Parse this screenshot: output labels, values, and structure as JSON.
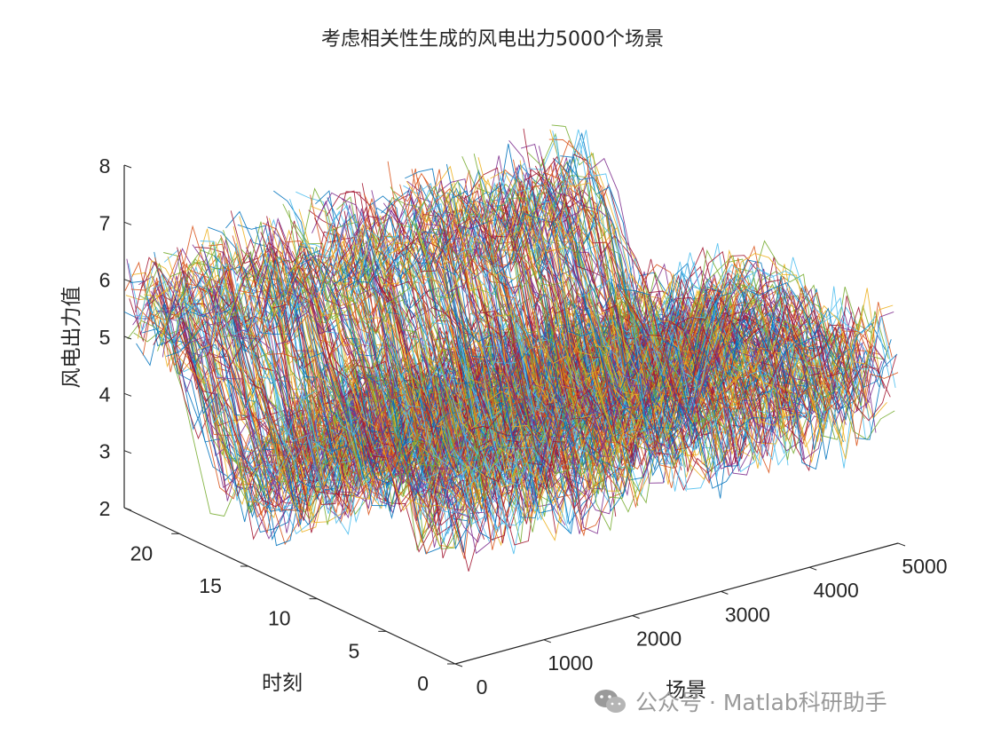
{
  "chart_data": {
    "type": "line",
    "title": "考虑相关性生成的风电出力5000个场景",
    "xlabel": "场景",
    "ylabel": "时刻",
    "zlabel": "风电出力值",
    "x_ticks": [
      0,
      1000,
      2000,
      3000,
      4000,
      5000
    ],
    "y_ticks": [
      0,
      5,
      10,
      15,
      20
    ],
    "z_ticks": [
      2,
      3,
      4,
      5,
      6,
      7,
      8
    ],
    "xlim": [
      0,
      5000
    ],
    "ylim": [
      0,
      24
    ],
    "zlim": [
      2,
      8
    ],
    "grid": false,
    "scenario_count": 5000,
    "time_steps": 24,
    "series_colors": [
      "#0072BD",
      "#D95319",
      "#EDB120",
      "#7E2F8E",
      "#77AC30",
      "#4DBEEE",
      "#A2142F"
    ]
  },
  "watermark": {
    "text": "公众号 · Matlab科研助手",
    "icon": "wechat-icon"
  }
}
